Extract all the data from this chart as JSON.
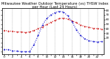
{
  "title": "Milwaukee Weather Outdoor Temperature (vs) THSW Index per Hour (Last 24 Hours)",
  "hours": [
    0,
    1,
    2,
    3,
    4,
    5,
    6,
    7,
    8,
    9,
    10,
    11,
    12,
    13,
    14,
    15,
    16,
    17,
    18,
    19,
    20,
    21,
    22,
    23
  ],
  "temp": [
    36,
    35,
    34,
    33,
    33,
    32,
    33,
    36,
    40,
    44,
    49,
    54,
    58,
    62,
    63,
    61,
    57,
    53,
    48,
    45,
    43,
    41,
    40,
    39
  ],
  "thsw": [
    -5,
    -6,
    -8,
    -9,
    -10,
    -10,
    -10,
    5,
    25,
    48,
    62,
    70,
    75,
    78,
    76,
    68,
    55,
    38,
    25,
    18,
    14,
    12,
    11,
    12
  ],
  "temp_color": "#cc0000",
  "thsw_color": "#0000cc",
  "ylim": [
    20,
    80
  ],
  "bg_color": "#ffffff",
  "grid_color": "#888888",
  "title_fontsize": 3.8,
  "tick_fontsize": 3.0,
  "linewidth": 0.8,
  "markersize": 1.0
}
